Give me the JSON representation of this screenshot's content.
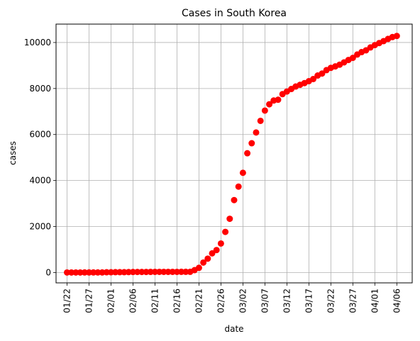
{
  "chart_data": {
    "type": "scatter",
    "title": "Cases in South Korea",
    "xlabel": "date",
    "ylabel": "cases",
    "x_tick_labels": [
      "01/22",
      "01/27",
      "02/01",
      "02/06",
      "02/11",
      "02/16",
      "02/21",
      "02/26",
      "03/02",
      "03/07",
      "03/12",
      "03/17",
      "03/22",
      "03/27",
      "04/01",
      "04/06"
    ],
    "y_ticks": [
      0,
      2000,
      4000,
      6000,
      8000,
      10000
    ],
    "xlim_days": [
      -2.5,
      78.5
    ],
    "ylim": [
      -450,
      10800
    ],
    "grid": true,
    "marker_color": "#ff0000",
    "series": [
      {
        "dates": [
          "01/22",
          "01/23",
          "01/24",
          "01/25",
          "01/26",
          "01/27",
          "01/28",
          "01/29",
          "01/30",
          "01/31",
          "02/01",
          "02/02",
          "02/03",
          "02/04",
          "02/05",
          "02/06",
          "02/07",
          "02/08",
          "02/09",
          "02/10",
          "02/11",
          "02/12",
          "02/13",
          "02/14",
          "02/15",
          "02/16",
          "02/17",
          "02/18",
          "02/19",
          "02/20",
          "02/21",
          "02/22",
          "02/23",
          "02/24",
          "02/25",
          "02/26",
          "02/27",
          "02/28",
          "02/29",
          "03/01",
          "03/02",
          "03/03",
          "03/04",
          "03/05",
          "03/06",
          "03/07",
          "03/08",
          "03/09",
          "03/10",
          "03/11",
          "03/12",
          "03/13",
          "03/14",
          "03/15",
          "03/16",
          "03/17",
          "03/18",
          "03/19",
          "03/20",
          "03/21",
          "03/22",
          "03/23",
          "03/24",
          "03/25",
          "03/26",
          "03/27",
          "03/28",
          "03/29",
          "03/30",
          "03/31",
          "04/01",
          "04/02",
          "04/03",
          "04/04",
          "04/05",
          "04/06"
        ],
        "values": [
          1,
          1,
          2,
          2,
          3,
          4,
          4,
          4,
          4,
          11,
          12,
          15,
          15,
          16,
          19,
          23,
          24,
          24,
          25,
          27,
          28,
          28,
          28,
          28,
          28,
          29,
          30,
          31,
          31,
          104,
          204,
          433,
          602,
          833,
          977,
          1261,
          1766,
          2337,
          3150,
          3736,
          4335,
          5186,
          5621,
          6088,
          6593,
          7041,
          7314,
          7478,
          7513,
          7755,
          7869,
          7979,
          8086,
          8162,
          8236,
          8320,
          8413,
          8565,
          8652,
          8799,
          8897,
          8961,
          9037,
          9137,
          9241,
          9332,
          9478,
          9583,
          9661,
          9786,
          9887,
          9976,
          10062,
          10156,
          10237,
          10284
        ]
      }
    ]
  }
}
